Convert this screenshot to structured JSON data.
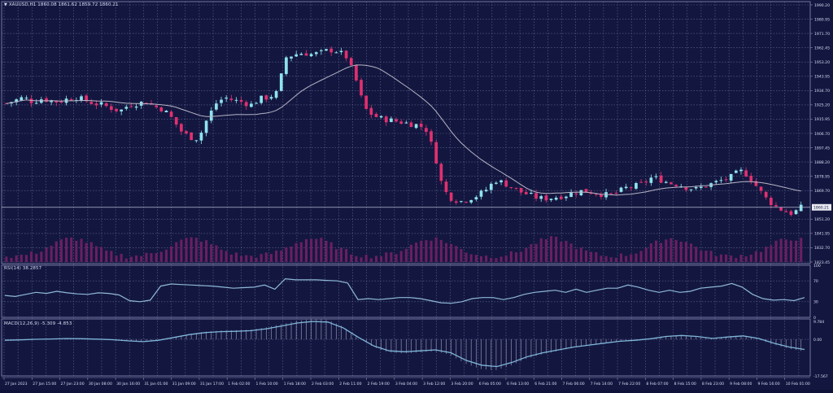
{
  "header": {
    "symbol_title": "XAUUSD,H1",
    "ohlc": "1860.08 1861.62 1859.72 1860.21",
    "menu_icon": "triangle-down-icon"
  },
  "indicators": {
    "rsi_label": "RSI(14) 38.2857",
    "macd_label": "MACD(12,26,9) -5.309 -4.853"
  },
  "colors": {
    "background": "#131740",
    "grid": "#6a6f9a",
    "bull": "#8fe3ec",
    "bear": "#e0306f",
    "ma": "#b8b4c4",
    "volume": "#6a1f63",
    "rsi_line": "#8fb8d8",
    "macd_line": "#7fb6d8",
    "macd_hist": "#b0b0c8",
    "axis_text": "#d8dcf0",
    "current_price_bg": "#e8e8f0"
  },
  "chart_data": [
    {
      "type": "candlestick",
      "title": "XAUUSD,H1 1860.08 1861.62 1859.72 1860.21",
      "xlabel": "",
      "ylabel": "",
      "ylim": [
        1823.45,
        1990.2
      ],
      "y_ticks": [
        "1990.20",
        "1980.95",
        "1971.70",
        "1962.45",
        "1953.20",
        "1943.95",
        "1934.70",
        "1925.20",
        "1915.95",
        "1906.70",
        "1897.45",
        "1888.20",
        "1878.95",
        "1869.70",
        "1860.21",
        "1851.20",
        "1841.95",
        "1832.70",
        "1823.45"
      ],
      "current_price": "1860.21",
      "x_ticks": [
        "27 Jan 2023",
        "27 Jan 15:00",
        "27 Jan 23:00",
        "30 Jan 08:00",
        "30 Jan 16:00",
        "31 Jan 01:00",
        "31 Jan 09:00",
        "31 Jan 17:00",
        "1 Feb 02:00",
        "1 Feb 10:00",
        "1 Feb 18:00",
        "2 Feb 03:00",
        "2 Feb 11:00",
        "2 Feb 19:00",
        "3 Feb 04:00",
        "3 Feb 12:00",
        "3 Feb 20:00",
        "6 Feb 05:00",
        "6 Feb 13:00",
        "6 Feb 21:00",
        "7 Feb 06:00",
        "7 Feb 14:00",
        "7 Feb 22:00",
        "8 Feb 07:00",
        "8 Feb 15:00",
        "8 Feb 23:00",
        "9 Feb 08:00",
        "9 Feb 16:00",
        "10 Feb 01:00"
      ],
      "close_path_approx": [
        1928,
        1930,
        1932,
        1929,
        1931,
        1930,
        1929,
        1931,
        1932,
        1930,
        1928,
        1927,
        1925,
        1923,
        1927,
        1928,
        1929,
        1926,
        1924,
        1918,
        1910,
        1906,
        1905,
        1918,
        1928,
        1932,
        1930,
        1929,
        1927,
        1931,
        1932,
        1935,
        1958,
        1960,
        1961,
        1960,
        1961,
        1963,
        1962,
        1958,
        1944,
        1925,
        1920,
        1918,
        1917,
        1916,
        1915,
        1914,
        1912,
        1896,
        1872,
        1866,
        1864,
        1866,
        1868,
        1872,
        1878,
        1876,
        1873,
        1870,
        1868,
        1866,
        1866,
        1867,
        1868,
        1870,
        1871,
        1870,
        1869,
        1868,
        1870,
        1873,
        1874,
        1876,
        1880,
        1878,
        1876,
        1875,
        1873,
        1872,
        1874,
        1876,
        1878,
        1880,
        1884,
        1881,
        1873,
        1866,
        1861,
        1858,
        1856,
        1860
      ],
      "ma_series": "moving average (approx 20-period), smooth grey line"
    },
    {
      "type": "bar",
      "title": "Volume",
      "note": "tick volume histogram, peaks around session opens"
    },
    {
      "type": "line",
      "title": "RSI(14) 38.2857",
      "ylim": [
        0,
        100
      ],
      "y_ticks": [
        "100",
        "70",
        "30",
        "0"
      ],
      "levels": [
        70,
        30
      ],
      "values_approx": [
        42,
        40,
        44,
        48,
        46,
        50,
        47,
        45,
        44,
        47,
        46,
        43,
        32,
        30,
        33,
        60,
        64,
        63,
        62,
        61,
        60,
        58,
        56,
        57,
        58,
        62,
        54,
        74,
        72,
        72,
        72,
        71,
        70,
        66,
        34,
        36,
        34,
        36,
        38,
        38,
        36,
        32,
        28,
        27,
        30,
        36,
        38,
        38,
        34,
        38,
        44,
        48,
        50,
        52,
        48,
        54,
        48,
        52,
        56,
        56,
        62,
        58,
        52,
        48,
        52,
        48,
        50,
        56,
        58,
        60,
        65,
        58,
        44,
        36,
        33,
        34,
        32,
        38
      ]
    },
    {
      "type": "line",
      "title": "MACD(12,26,9) -5.309 -4.853",
      "ylim": [
        -17.567,
        9.784
      ],
      "y_ticks": [
        "9.784",
        "0.00",
        "-17.567"
      ],
      "values_approx": [
        -0.5,
        -0.3,
        0,
        0.2,
        0.4,
        0.3,
        0.1,
        -0.2,
        -0.8,
        -1.2,
        -0.5,
        1.0,
        2.5,
        3.5,
        4.0,
        4.2,
        4.5,
        5.5,
        7.0,
        8.5,
        9.3,
        9.0,
        6.0,
        1.0,
        -3.5,
        -6.0,
        -6.5,
        -6.0,
        -5.5,
        -7.0,
        -11.0,
        -13.5,
        -14.2,
        -12.0,
        -9.0,
        -7.0,
        -5.5,
        -4.0,
        -3.0,
        -2.0,
        -1.0,
        -0.5,
        0.3,
        1.5,
        2.0,
        1.5,
        0.5,
        1.2,
        1.8,
        0.5,
        -2.0,
        -4.0,
        -5.3
      ]
    }
  ]
}
